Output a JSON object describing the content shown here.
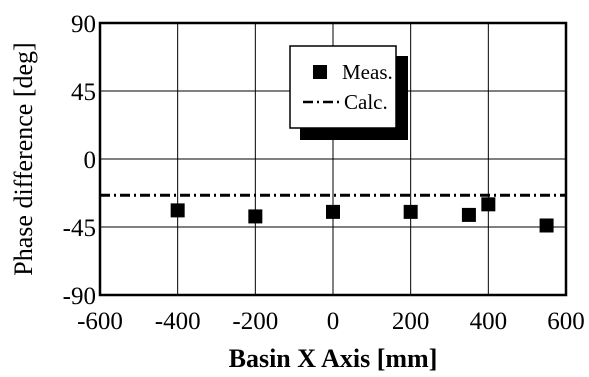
{
  "chart_data": {
    "type": "scatter",
    "xlabel": "Basin X Axis [mm]",
    "ylabel": "Phase difference [deg]",
    "xlim": [
      -600,
      600
    ],
    "ylim": [
      -90,
      90
    ],
    "xticks": [
      -600,
      -400,
      -200,
      0,
      200,
      400,
      600
    ],
    "yticks": [
      90,
      45,
      0,
      -45,
      -90
    ],
    "grid": true,
    "legend": {
      "placement": "top-center",
      "entries": [
        {
          "label": "Meas.",
          "marker": "square",
          "color": "#000000"
        },
        {
          "label": "Calc.",
          "style": "dash-dot",
          "color": "#000000"
        }
      ]
    },
    "series": [
      {
        "name": "Meas.",
        "kind": "scatter",
        "marker": "square",
        "color": "#000000",
        "x": [
          -400,
          -200,
          0,
          200,
          350,
          400,
          550
        ],
        "y": [
          -34,
          -38,
          -35,
          -35,
          -37,
          -30,
          -44
        ]
      },
      {
        "name": "Calc.",
        "kind": "line",
        "style": "dash-dot",
        "color": "#000000",
        "x": [
          -600,
          600
        ],
        "y": [
          -24,
          -24
        ]
      }
    ]
  }
}
